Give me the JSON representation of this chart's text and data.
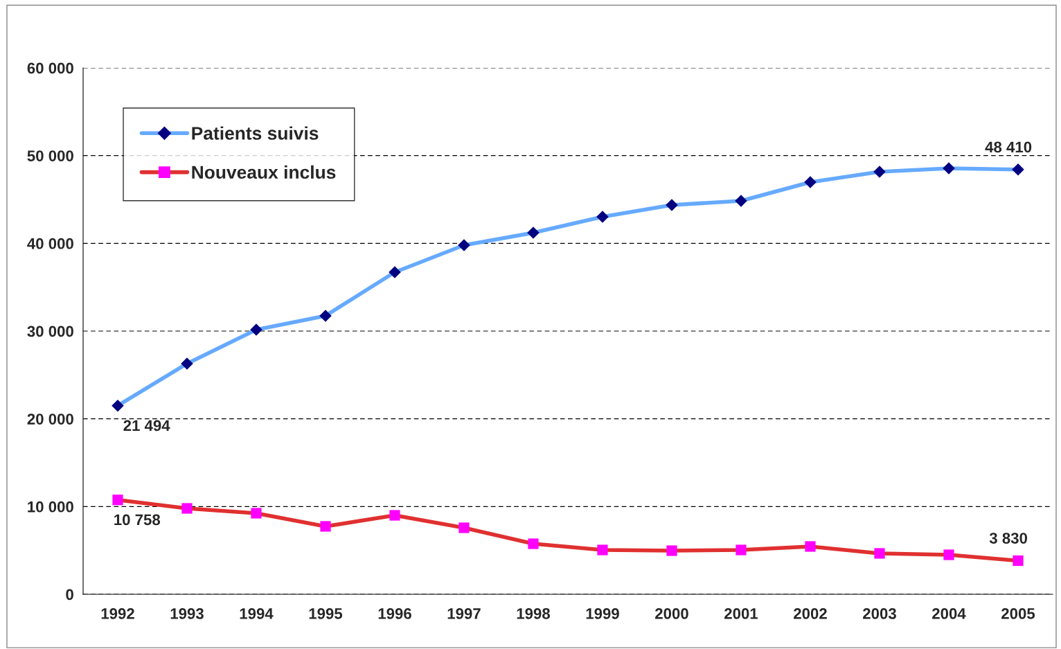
{
  "chart_data": {
    "type": "line",
    "categories": [
      "1992",
      "1993",
      "1994",
      "1995",
      "1996",
      "1997",
      "1998",
      "1999",
      "2000",
      "2001",
      "2002",
      "2003",
      "2004",
      "2005"
    ],
    "series": [
      {
        "name": "Patients suivis",
        "color": "#66aaff",
        "colors": [
          "#000080",
          "#000080",
          "#000080",
          "#000080",
          "#000080",
          "#000080",
          "#000080",
          "#000080",
          "#000080",
          "#000080",
          "#000080",
          "#000080",
          "#000080",
          "#000080"
        ],
        "marker": "diamond",
        "values": [
          21494,
          26290,
          30160,
          31740,
          36710,
          39790,
          41210,
          43030,
          44370,
          44840,
          46970,
          48160,
          48550,
          48410
        ],
        "value_labels": [
          "21 494",
          null,
          null,
          null,
          null,
          null,
          null,
          null,
          null,
          null,
          null,
          null,
          null,
          "48 410"
        ]
      },
      {
        "name": "Nouveaux inclus",
        "color": "#e03030",
        "colors": [
          "#ff00ff",
          "#ff00ff",
          "#ff00ff",
          "#ff00ff",
          "#ff00ff",
          "#ff00ff",
          "#ff00ff",
          "#ff00ff",
          "#ff00ff",
          "#ff00ff",
          "#ff00ff",
          "#ff00ff",
          "#ff00ff",
          "#ff00ff"
        ],
        "marker": "square",
        "values": [
          10758,
          9790,
          9240,
          7740,
          9000,
          7580,
          5760,
          5050,
          4970,
          5050,
          5450,
          4660,
          4500,
          3830
        ],
        "value_labels": [
          "10 758",
          null,
          null,
          null,
          null,
          null,
          null,
          null,
          null,
          null,
          null,
          null,
          null,
          "3 830"
        ]
      }
    ],
    "ylim": [
      0,
      60000
    ],
    "yticks": [
      {
        "value": 0,
        "label": "0"
      },
      {
        "value": 10000,
        "label": "10 000"
      },
      {
        "value": 20000,
        "label": "20 000"
      },
      {
        "value": 30000,
        "label": "30 000"
      },
      {
        "value": 40000,
        "label": "40 000"
      },
      {
        "value": 50000,
        "label": "50 000"
      },
      {
        "value": 60000,
        "label": "60 000"
      }
    ],
    "grid": "y",
    "legend": "top left",
    "line_style": "solid"
  }
}
